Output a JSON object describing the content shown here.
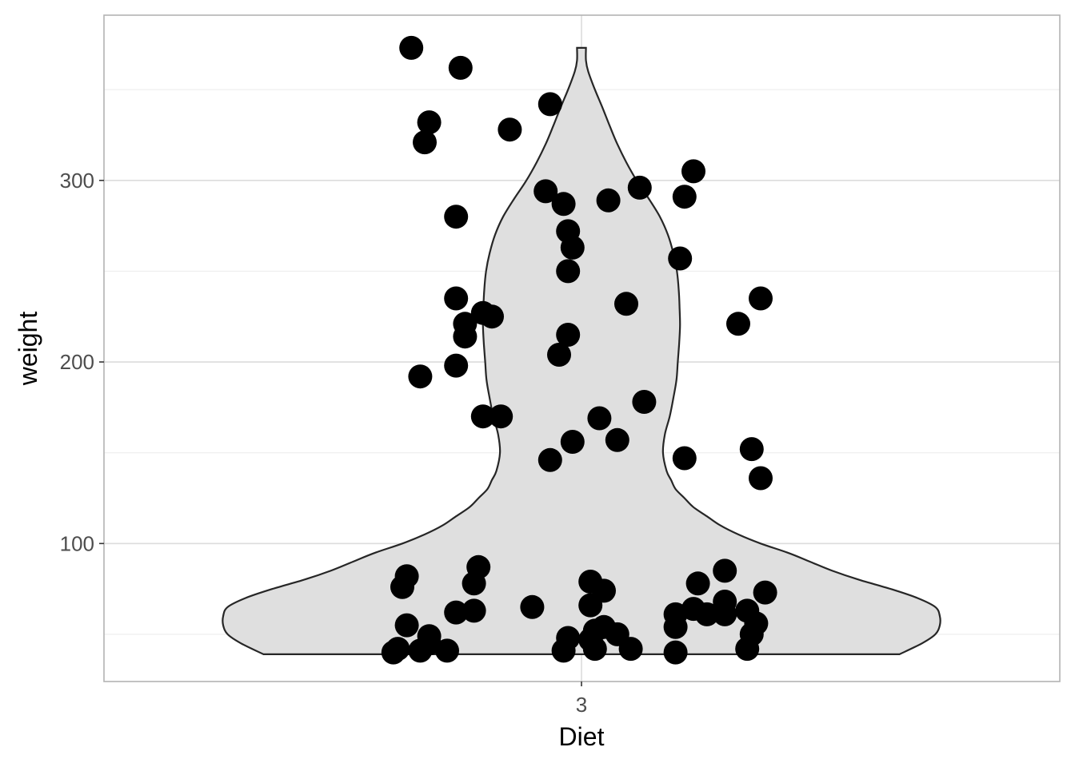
{
  "chart_data": {
    "type": "violin",
    "xlabel": "Diet",
    "ylabel": "weight",
    "categories": [
      "3"
    ],
    "y_ticks": [
      100,
      200,
      300
    ],
    "ylim": [
      24,
      391
    ],
    "grid": true,
    "colors": {
      "violin_fill": "#dfdfdf",
      "violin_stroke": "#262626",
      "point": "#000000",
      "grid_major": "#dcdcdc",
      "grid_minor": "#eeeeee",
      "panel_border": "#b3b3b3"
    },
    "violin_profile": [
      [
        39,
        0.71
      ],
      [
        45,
        0.76
      ],
      [
        50,
        0.79
      ],
      [
        55,
        0.8
      ],
      [
        60,
        0.8
      ],
      [
        65,
        0.79
      ],
      [
        70,
        0.75
      ],
      [
        75,
        0.69
      ],
      [
        80,
        0.62
      ],
      [
        85,
        0.56
      ],
      [
        90,
        0.51
      ],
      [
        95,
        0.46
      ],
      [
        100,
        0.4
      ],
      [
        105,
        0.35
      ],
      [
        110,
        0.31
      ],
      [
        115,
        0.28
      ],
      [
        120,
        0.25
      ],
      [
        125,
        0.23
      ],
      [
        130,
        0.21
      ],
      [
        135,
        0.2
      ],
      [
        140,
        0.19
      ],
      [
        150,
        0.182
      ],
      [
        160,
        0.186
      ],
      [
        170,
        0.197
      ],
      [
        180,
        0.205
      ],
      [
        190,
        0.212
      ],
      [
        200,
        0.215
      ],
      [
        210,
        0.218
      ],
      [
        220,
        0.22
      ],
      [
        230,
        0.219
      ],
      [
        240,
        0.217
      ],
      [
        250,
        0.213
      ],
      [
        260,
        0.205
      ],
      [
        270,
        0.193
      ],
      [
        280,
        0.175
      ],
      [
        290,
        0.15
      ],
      [
        300,
        0.123
      ],
      [
        310,
        0.1
      ],
      [
        320,
        0.08
      ],
      [
        330,
        0.063
      ],
      [
        340,
        0.047
      ],
      [
        350,
        0.03
      ],
      [
        360,
        0.015
      ],
      [
        366,
        0.01
      ],
      [
        373,
        0.01
      ]
    ],
    "points": [
      {
        "x": 0.62,
        "y": 373
      },
      {
        "x": 0.73,
        "y": 362
      },
      {
        "x": 0.66,
        "y": 332
      },
      {
        "x": 0.65,
        "y": 321
      },
      {
        "x": 0.84,
        "y": 328
      },
      {
        "x": 0.93,
        "y": 342
      },
      {
        "x": 0.92,
        "y": 294
      },
      {
        "x": 0.96,
        "y": 287
      },
      {
        "x": 0.97,
        "y": 272
      },
      {
        "x": 0.98,
        "y": 263
      },
      {
        "x": 0.97,
        "y": 250
      },
      {
        "x": 0.97,
        "y": 215
      },
      {
        "x": 0.95,
        "y": 204
      },
      {
        "x": 0.98,
        "y": 156
      },
      {
        "x": 0.93,
        "y": 146
      },
      {
        "x": 0.72,
        "y": 280
      },
      {
        "x": 0.72,
        "y": 235
      },
      {
        "x": 0.78,
        "y": 227
      },
      {
        "x": 0.8,
        "y": 225
      },
      {
        "x": 0.74,
        "y": 221
      },
      {
        "x": 0.74,
        "y": 214
      },
      {
        "x": 0.72,
        "y": 198
      },
      {
        "x": 0.64,
        "y": 192
      },
      {
        "x": 0.78,
        "y": 170
      },
      {
        "x": 0.82,
        "y": 170
      },
      {
        "x": 1.06,
        "y": 289
      },
      {
        "x": 1.13,
        "y": 296
      },
      {
        "x": 1.23,
        "y": 291
      },
      {
        "x": 1.25,
        "y": 305
      },
      {
        "x": 1.22,
        "y": 257
      },
      {
        "x": 1.1,
        "y": 232
      },
      {
        "x": 1.14,
        "y": 178
      },
      {
        "x": 1.04,
        "y": 169
      },
      {
        "x": 1.08,
        "y": 157
      },
      {
        "x": 1.23,
        "y": 147
      },
      {
        "x": 1.35,
        "y": 221
      },
      {
        "x": 1.4,
        "y": 235
      },
      {
        "x": 1.38,
        "y": 152
      },
      {
        "x": 1.4,
        "y": 136
      },
      {
        "x": 0.61,
        "y": 82
      },
      {
        "x": 0.6,
        "y": 76
      },
      {
        "x": 0.61,
        "y": 55
      },
      {
        "x": 0.66,
        "y": 49
      },
      {
        "x": 0.66,
        "y": 45
      },
      {
        "x": 0.64,
        "y": 41
      },
      {
        "x": 0.59,
        "y": 42
      },
      {
        "x": 0.58,
        "y": 40
      },
      {
        "x": 0.7,
        "y": 41
      },
      {
        "x": 0.72,
        "y": 62
      },
      {
        "x": 0.76,
        "y": 63
      },
      {
        "x": 0.76,
        "y": 78
      },
      {
        "x": 0.77,
        "y": 87
      },
      {
        "x": 0.89,
        "y": 65
      },
      {
        "x": 0.96,
        "y": 41
      },
      {
        "x": 0.97,
        "y": 48
      },
      {
        "x": 1.02,
        "y": 79
      },
      {
        "x": 1.02,
        "y": 66
      },
      {
        "x": 1.05,
        "y": 74
      },
      {
        "x": 1.03,
        "y": 52
      },
      {
        "x": 1.02,
        "y": 47
      },
      {
        "x": 1.03,
        "y": 42
      },
      {
        "x": 1.05,
        "y": 54
      },
      {
        "x": 1.08,
        "y": 50
      },
      {
        "x": 1.11,
        "y": 42
      },
      {
        "x": 1.21,
        "y": 61
      },
      {
        "x": 1.21,
        "y": 54
      },
      {
        "x": 1.21,
        "y": 40
      },
      {
        "x": 1.26,
        "y": 78
      },
      {
        "x": 1.25,
        "y": 64
      },
      {
        "x": 1.28,
        "y": 61
      },
      {
        "x": 1.32,
        "y": 85
      },
      {
        "x": 1.32,
        "y": 68
      },
      {
        "x": 1.32,
        "y": 61
      },
      {
        "x": 1.37,
        "y": 63
      },
      {
        "x": 1.39,
        "y": 56
      },
      {
        "x": 1.38,
        "y": 50
      },
      {
        "x": 1.37,
        "y": 42
      },
      {
        "x": 1.41,
        "y": 73
      }
    ]
  }
}
